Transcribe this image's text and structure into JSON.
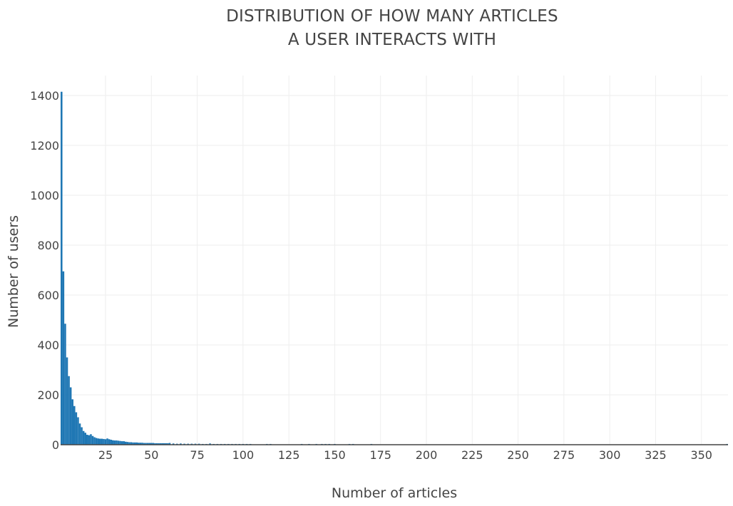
{
  "chart_data": {
    "type": "bar",
    "title_lines": [
      "DISTRIBUTION OF HOW MANY ARTICLES",
      "A USER INTERACTS WITH"
    ],
    "xlabel": "Number of articles",
    "ylabel": "Number of users",
    "xlim": [
      0.5,
      364.5
    ],
    "ylim": [
      0,
      1480
    ],
    "x_ticks": [
      25,
      50,
      75,
      100,
      125,
      150,
      175,
      200,
      225,
      250,
      275,
      300,
      325,
      350
    ],
    "y_ticks": [
      0,
      200,
      400,
      600,
      800,
      1000,
      1200,
      1400
    ],
    "grid": true,
    "bar_color": "#1f77b4",
    "grid_color": "#eeeeee",
    "x": [
      1,
      2,
      3,
      4,
      5,
      6,
      7,
      8,
      9,
      10,
      11,
      12,
      13,
      14,
      15,
      16,
      17,
      18,
      19,
      20,
      21,
      22,
      23,
      24,
      25,
      26,
      27,
      28,
      29,
      30,
      31,
      32,
      33,
      34,
      35,
      36,
      37,
      38,
      39,
      40,
      41,
      42,
      43,
      44,
      45,
      46,
      47,
      48,
      49,
      50,
      51,
      52,
      53,
      54,
      55,
      56,
      57,
      58,
      59,
      60,
      62,
      64,
      66,
      68,
      70,
      72,
      74,
      76,
      78,
      80,
      82,
      84,
      86,
      88,
      90,
      92,
      94,
      96,
      98,
      100,
      102,
      104,
      113,
      115,
      132,
      136,
      140,
      143,
      145,
      147,
      150,
      158,
      160,
      170,
      364
    ],
    "values": [
      1415,
      695,
      485,
      350,
      275,
      230,
      182,
      155,
      130,
      110,
      85,
      70,
      55,
      48,
      40,
      38,
      42,
      35,
      30,
      27,
      25,
      24,
      24,
      23,
      22,
      25,
      22,
      20,
      18,
      17,
      17,
      16,
      15,
      14,
      14,
      12,
      11,
      10,
      10,
      9,
      9,
      9,
      8,
      8,
      8,
      7,
      7,
      7,
      7,
      7,
      7,
      6,
      6,
      6,
      6,
      6,
      6,
      6,
      6,
      7,
      5,
      4,
      5,
      4,
      4,
      4,
      4,
      4,
      3,
      3,
      5,
      3,
      3,
      3,
      3,
      3,
      3,
      3,
      3,
      3,
      3,
      3,
      3,
      3,
      3,
      3,
      3,
      3,
      3,
      3,
      3,
      3,
      3,
      3,
      3
    ]
  }
}
